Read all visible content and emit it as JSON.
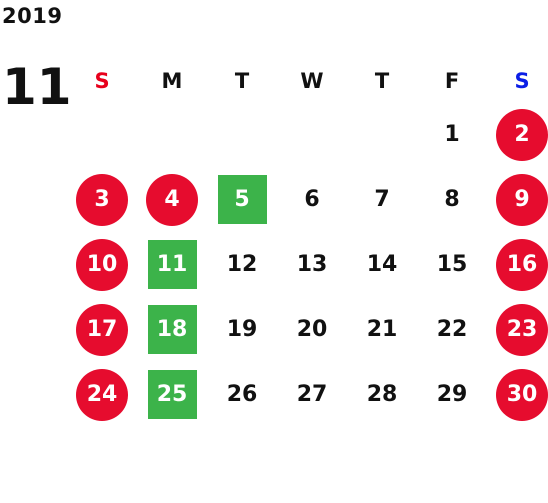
{
  "year": "2019",
  "month": "11",
  "weekdays": [
    "S",
    "M",
    "T",
    "W",
    "T",
    "F",
    "S"
  ],
  "colors": {
    "holiday": "#e60c2e",
    "special": "#3cb34a",
    "sunday": "#e8001c",
    "saturday": "#0b1ee6"
  },
  "weeks": [
    [
      {
        "day": "",
        "type": "blank"
      },
      {
        "day": "",
        "type": "blank"
      },
      {
        "day": "",
        "type": "blank"
      },
      {
        "day": "",
        "type": "blank"
      },
      {
        "day": "",
        "type": "blank"
      },
      {
        "day": "1",
        "type": "normal"
      },
      {
        "day": "2",
        "type": "red"
      }
    ],
    [
      {
        "day": "3",
        "type": "red"
      },
      {
        "day": "4",
        "type": "red"
      },
      {
        "day": "5",
        "type": "green"
      },
      {
        "day": "6",
        "type": "normal"
      },
      {
        "day": "7",
        "type": "normal"
      },
      {
        "day": "8",
        "type": "normal"
      },
      {
        "day": "9",
        "type": "red"
      }
    ],
    [
      {
        "day": "10",
        "type": "red"
      },
      {
        "day": "11",
        "type": "green"
      },
      {
        "day": "12",
        "type": "normal"
      },
      {
        "day": "13",
        "type": "normal"
      },
      {
        "day": "14",
        "type": "normal"
      },
      {
        "day": "15",
        "type": "normal"
      },
      {
        "day": "16",
        "type": "red"
      }
    ],
    [
      {
        "day": "17",
        "type": "red"
      },
      {
        "day": "18",
        "type": "green"
      },
      {
        "day": "19",
        "type": "normal"
      },
      {
        "day": "20",
        "type": "normal"
      },
      {
        "day": "21",
        "type": "normal"
      },
      {
        "day": "22",
        "type": "normal"
      },
      {
        "day": "23",
        "type": "red"
      }
    ],
    [
      {
        "day": "24",
        "type": "red"
      },
      {
        "day": "25",
        "type": "green"
      },
      {
        "day": "26",
        "type": "normal"
      },
      {
        "day": "27",
        "type": "normal"
      },
      {
        "day": "28",
        "type": "normal"
      },
      {
        "day": "29",
        "type": "normal"
      },
      {
        "day": "30",
        "type": "red"
      }
    ]
  ]
}
